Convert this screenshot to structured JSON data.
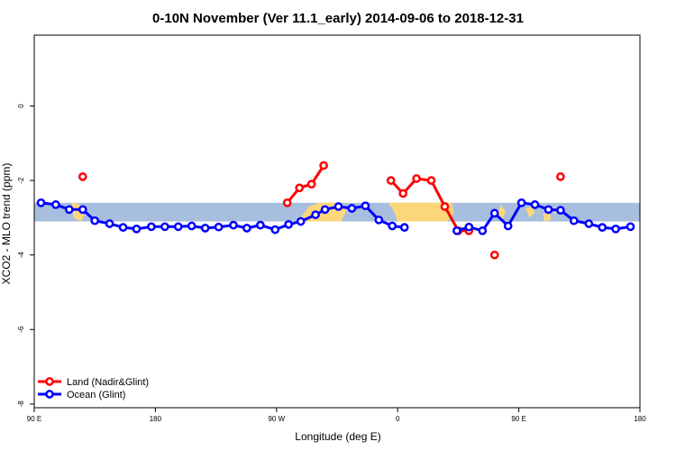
{
  "chart_data": {
    "type": "line",
    "title": "0-10N November (Ver 11.1_early)   2014-09-06 to 2018-12-31",
    "xlabel": "Longitude (deg E)",
    "ylabel": "XCO2 - MLO trend (ppm)",
    "xlim": [
      90,
      540
    ],
    "ylim": [
      -8.1,
      1.9
    ],
    "xticks": [
      {
        "value": 90,
        "label": "90 E"
      },
      {
        "value": 180,
        "label": "180"
      },
      {
        "value": 270,
        "label": "90 W"
      },
      {
        "value": 360,
        "label": "0"
      },
      {
        "value": 450,
        "label": "90 E"
      },
      {
        "value": 540,
        "label": "180"
      }
    ],
    "yticks": [
      {
        "value": 0,
        "label": "0"
      },
      {
        "value": -2,
        "label": "-2"
      },
      {
        "value": -4,
        "label": "-4"
      },
      {
        "value": -6,
        "label": "-6"
      },
      {
        "value": -8,
        "label": "-8"
      }
    ],
    "background_band": {
      "ymin": -3.1,
      "ymax": -2.6,
      "ocean_color": "#a7bedf",
      "land_color": "#fcd77a"
    },
    "series": [
      {
        "name": "Land (Nadir&Glint)",
        "color": "#ff0000",
        "segments": [
          [
            [
              126,
              -1.9
            ]
          ],
          [
            [
              278,
              -2.6
            ],
            [
              287,
              -2.2
            ],
            [
              296,
              -2.1
            ],
            [
              305,
              -1.6
            ]
          ],
          [
            [
              355,
              -2.0
            ],
            [
              364,
              -2.35
            ],
            [
              374,
              -1.95
            ],
            [
              385,
              -2.0
            ],
            [
              395,
              -2.7
            ],
            [
              405,
              -3.35
            ],
            [
              413,
              -3.35
            ]
          ],
          [
            [
              432,
              -4.0
            ]
          ],
          [
            [
              481,
              -1.9
            ]
          ]
        ]
      },
      {
        "name": "Ocean (Glint)",
        "color": "#0000ff",
        "segments": [
          [
            [
              95,
              -2.6
            ],
            [
              106,
              -2.65
            ],
            [
              116,
              -2.78
            ],
            [
              126,
              -2.78
            ],
            [
              135,
              -3.08
            ],
            [
              146,
              -3.16
            ],
            [
              156,
              -3.26
            ],
            [
              166,
              -3.3
            ],
            [
              177,
              -3.24
            ],
            [
              187,
              -3.24
            ],
            [
              197,
              -3.24
            ],
            [
              207,
              -3.22
            ],
            [
              217,
              -3.28
            ],
            [
              227,
              -3.25
            ],
            [
              238,
              -3.2
            ],
            [
              248,
              -3.28
            ],
            [
              258,
              -3.2
            ],
            [
              269,
              -3.32
            ],
            [
              279,
              -3.18
            ],
            [
              288,
              -3.1
            ],
            [
              299,
              -2.92
            ],
            [
              306,
              -2.78
            ],
            [
              316,
              -2.7
            ],
            [
              326,
              -2.75
            ],
            [
              336,
              -2.68
            ],
            [
              346,
              -3.06
            ],
            [
              356,
              -3.22
            ],
            [
              365,
              -3.26
            ]
          ],
          [
            [
              404,
              -3.35
            ],
            [
              413,
              -3.25
            ],
            [
              423,
              -3.35
            ],
            [
              432,
              -2.88
            ],
            [
              442,
              -3.22
            ],
            [
              452,
              -2.6
            ],
            [
              462,
              -2.65
            ],
            [
              472,
              -2.78
            ],
            [
              481,
              -2.8
            ],
            [
              491,
              -3.08
            ],
            [
              502,
              -3.16
            ],
            [
              512,
              -3.26
            ],
            [
              522,
              -3.3
            ],
            [
              533,
              -3.24
            ]
          ]
        ]
      }
    ],
    "legend": {
      "position": "bottom-left"
    }
  }
}
